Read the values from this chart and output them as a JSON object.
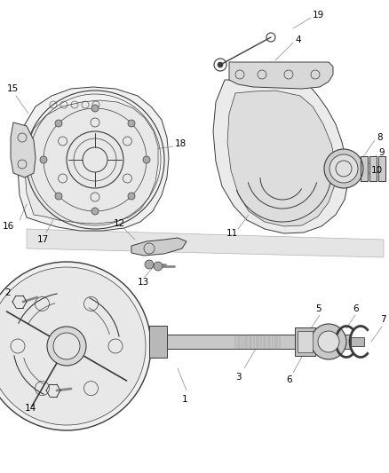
{
  "background_color": "#ffffff",
  "line_color": "#3a3a3a",
  "label_color": "#000000",
  "fig_width": 4.38,
  "fig_height": 5.33,
  "dpi": 100,
  "label_fontsize": 7.5,
  "lw": 0.7
}
